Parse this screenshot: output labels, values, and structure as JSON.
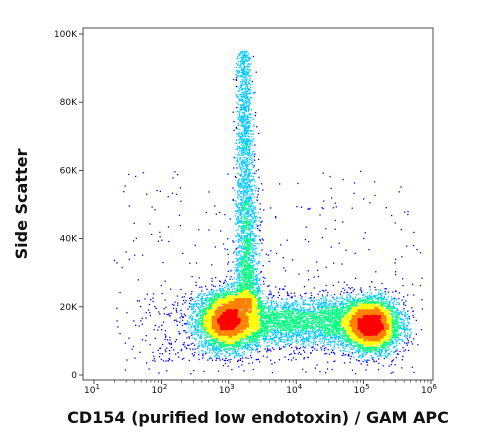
{
  "chart_data": {
    "type": "scatter",
    "plot_style": "density pseudocolor (flow cytometry)",
    "xlabel": "CD154 (purified low endotoxin) / GAM APC",
    "ylabel": "Side Scatter",
    "x_scale": "log",
    "xlim": [
      10,
      1000000
    ],
    "ylim": [
      0,
      100000
    ],
    "grid": false,
    "x_ticks": [
      {
        "value": 10,
        "base": "10",
        "exp": "1"
      },
      {
        "value": 100,
        "base": "10",
        "exp": "2"
      },
      {
        "value": 1000,
        "base": "10",
        "exp": "3"
      },
      {
        "value": 10000,
        "base": "10",
        "exp": "4"
      },
      {
        "value": 100000,
        "base": "10",
        "exp": "5"
      },
      {
        "value": 1000000,
        "base": "10",
        "exp": "6"
      }
    ],
    "y_ticks": [
      {
        "value": 0,
        "label": "0"
      },
      {
        "value": 20000,
        "label": "20K"
      },
      {
        "value": 40000,
        "label": "40K"
      },
      {
        "value": 60000,
        "label": "60K"
      },
      {
        "value": 80000,
        "label": "80K"
      },
      {
        "value": 100000,
        "label": "100K"
      }
    ],
    "populations": [
      {
        "name": "negative",
        "x_center": 1000,
        "y_center": 17000,
        "peak": "red"
      },
      {
        "name": "vertical tail",
        "x_center": 1800,
        "y_range": [
          20000,
          100000
        ]
      },
      {
        "name": "positive",
        "x_center": 150000,
        "y_center": 15000,
        "peak": "red"
      }
    ],
    "color_scale": [
      "#0000ff",
      "#00c8ff",
      "#00ff80",
      "#ffff00",
      "#ff8000",
      "#ff0000"
    ]
  }
}
